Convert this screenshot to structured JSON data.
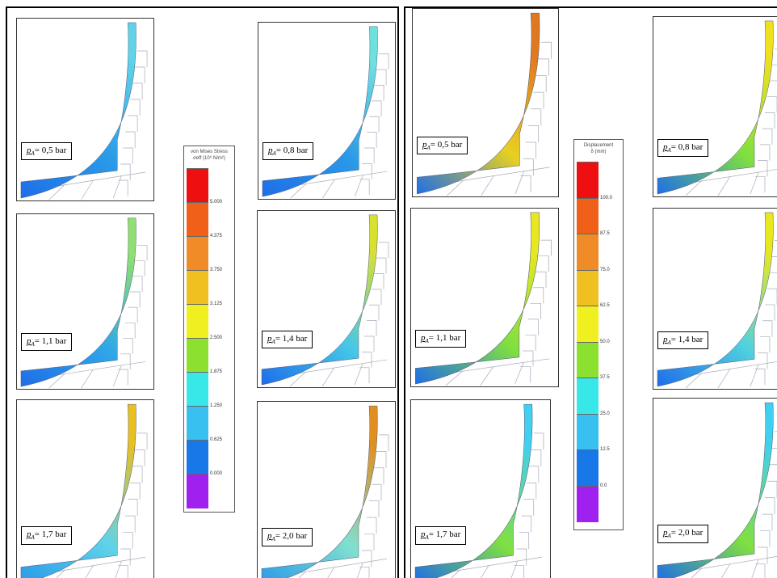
{
  "panels": [
    {
      "legend": {
        "title": "von Mises Stress",
        "unit": "σeff (10⁶ N/m²)",
        "ticks": [
          "5.000",
          "4.375",
          "3.750",
          "3.125",
          "2.500",
          "1.875",
          "1.250",
          "0.625",
          "0.000"
        ]
      },
      "images": [
        {
          "label": {
            "symbol": "p",
            "subscript": "A",
            "text": "= 0,5 bar"
          }
        },
        {
          "label": {
            "symbol": "p",
            "subscript": "A",
            "text": "= 0,8 bar"
          }
        },
        {
          "label": {
            "symbol": "p",
            "subscript": "A",
            "text": "= 1,1 bar"
          }
        },
        {
          "label": {
            "symbol": "p",
            "subscript": "A",
            "text": "= 1,4 bar"
          }
        },
        {
          "label": {
            "symbol": "p",
            "subscript": "A",
            "text": "= 1,7 bar"
          }
        },
        {
          "label": {
            "symbol": "p",
            "subscript": "A",
            "text": "= 2,0 bar"
          }
        }
      ]
    },
    {
      "legend": {
        "title": "Displacement",
        "unit": "δ (mm)",
        "ticks": [
          "100.0",
          "87.5",
          "75.0",
          "62.5",
          "50.0",
          "37.5",
          "25.0",
          "12.5",
          "0.0"
        ]
      },
      "images": [
        {
          "label": {
            "symbol": "p",
            "subscript": "A",
            "text": "= 0,5 bar"
          }
        },
        {
          "label": {
            "symbol": "p",
            "subscript": "A",
            "text": "= 0,8 bar"
          }
        },
        {
          "label": {
            "symbol": "p",
            "subscript": "A",
            "text": "= 1,1 bar"
          }
        },
        {
          "label": {
            "symbol": "p",
            "subscript": "A",
            "text": "= 1,4 bar"
          }
        },
        {
          "label": {
            "symbol": "p",
            "subscript": "A",
            "text": "= 1,7 bar"
          }
        },
        {
          "label": {
            "symbol": "p",
            "subscript": "A",
            "text": "= 2,0 bar"
          }
        }
      ]
    }
  ]
}
